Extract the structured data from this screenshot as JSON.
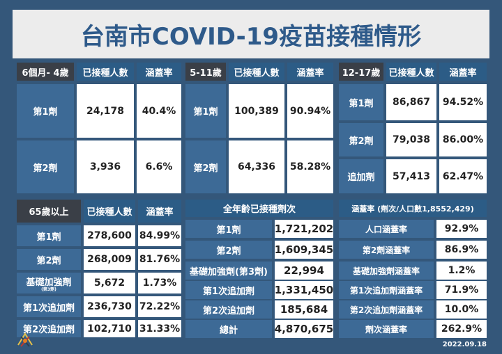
{
  "title": "台南市COVID-19疫苗接種情形",
  "date": "2022.09.18",
  "logo_text": "台南",
  "table_6m4y": {
    "header": [
      "6個月- 4歲",
      "已接種人數",
      "涵蓋率"
    ],
    "rows": [
      {
        "label": "第1劑",
        "count": "24,178",
        "rate": "40.4%"
      },
      {
        "label": "第2劑",
        "count": "3,936",
        "rate": "6.6%"
      }
    ]
  },
  "table_5to11": {
    "header": [
      "5-11歲",
      "已接種人數",
      "涵蓋率"
    ],
    "rows": [
      {
        "label": "第1劑",
        "count": "100,389",
        "rate": "90.94%"
      },
      {
        "label": "第2劑",
        "count": "64,336",
        "rate": "58.28%"
      }
    ]
  },
  "table_12to17": {
    "header": [
      "12-17歲",
      "已接種人數",
      "涵蓋率"
    ],
    "rows": [
      {
        "label": "第1劑",
        "count": "86,867",
        "rate": "94.52%"
      },
      {
        "label": "第2劑",
        "count": "79,038",
        "rate": "86.00%"
      },
      {
        "label": "追加劑",
        "count": "57,413",
        "rate": "62.47%"
      }
    ]
  },
  "table_65plus": {
    "header": [
      "65歲以上",
      "已接種人數",
      "涵蓋率"
    ],
    "rows": [
      {
        "label": "第1劑",
        "count": "278,600",
        "rate": "84.99%"
      },
      {
        "label": "第2劑",
        "count": "268,009",
        "rate": "81.76%"
      },
      {
        "label": "基礎加強劑",
        "sublabel": "(第3劑)",
        "count": "5,672",
        "rate": "1.73%"
      },
      {
        "label": "第1次追加劑",
        "count": "236,730",
        "rate": "72.22%"
      },
      {
        "label": "第2次追加劑",
        "count": "102,710",
        "rate": "31.33%"
      }
    ]
  },
  "table_all_ages": {
    "header": "全年齡已接種劑次",
    "rows": [
      {
        "label": "第1劑",
        "count": "1,721,202"
      },
      {
        "label": "第2劑",
        "count": "1,609,345"
      },
      {
        "label": "基礎加強劑(第3劑)",
        "count": "22,994"
      },
      {
        "label": "第1次追加劑",
        "count": "1,331,450"
      },
      {
        "label": "第2次追加劑",
        "count": "185,684"
      },
      {
        "label": "總計",
        "count": "4,870,675"
      }
    ]
  },
  "table_coverage": {
    "header": "涵蓋率 (劑次/人口數1,8552,429)",
    "rows": [
      {
        "label": "人口涵蓋率",
        "rate": "92.9%"
      },
      {
        "label": "第2劑涵蓋率",
        "rate": "86.9%"
      },
      {
        "label": "基礎加強劑涵蓋率",
        "rate": "1.2%"
      },
      {
        "label": "第1次追加劑涵蓋率",
        "rate": "71.9%"
      },
      {
        "label": "第2次追加劑涵蓋率",
        "rate": "10.0%"
      },
      {
        "label": "劑次涵蓋率",
        "rate": "262.9%"
      }
    ]
  }
}
